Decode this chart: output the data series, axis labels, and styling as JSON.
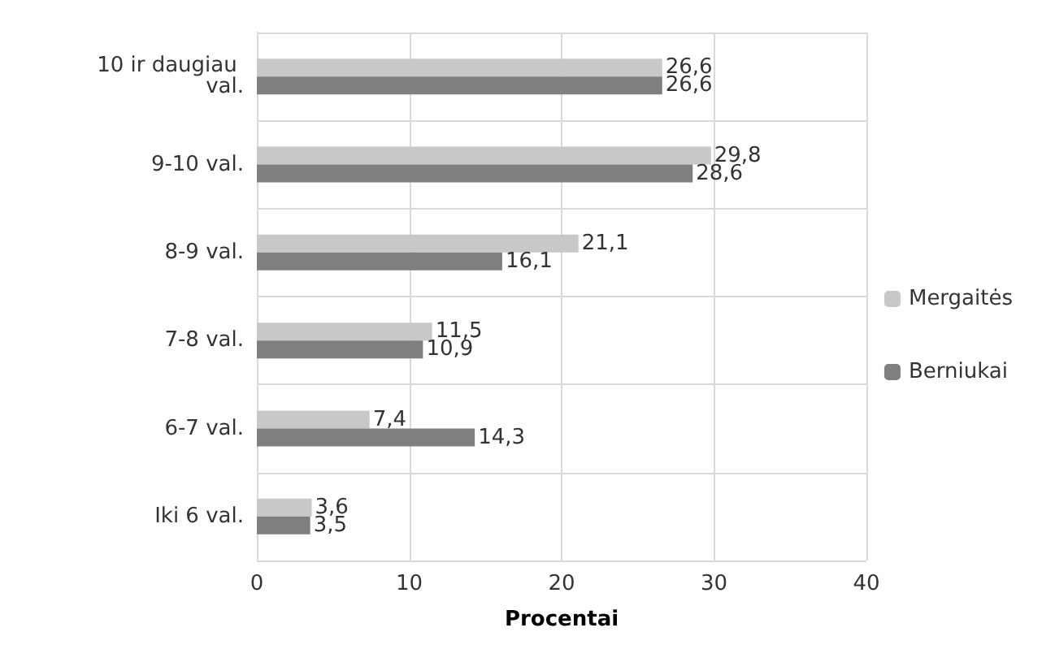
{
  "chart_data": {
    "type": "bar",
    "orientation": "horizontal",
    "xlabel": "Procentai",
    "categories": [
      "10 ir daugiau val.",
      "9-10 val.",
      "8-9 val.",
      "7-8 val.",
      "6-7 val.",
      "Iki 6 val."
    ],
    "series": [
      {
        "name": "Mergaitės",
        "color": "#c8c8c8",
        "values": [
          26.6,
          29.8,
          21.1,
          11.5,
          7.4,
          3.6
        ],
        "value_labels": [
          "26,6",
          "29,8",
          "21,1",
          "11,5",
          "7,4",
          "3,6"
        ]
      },
      {
        "name": "Berniukai",
        "color": "#7f7f7f",
        "values": [
          26.6,
          28.6,
          16.1,
          10.9,
          14.3,
          3.5
        ],
        "value_labels": [
          "26,6",
          "28,6",
          "16,1",
          "10,9",
          "14,3",
          "3,5"
        ]
      }
    ],
    "xlim": [
      0,
      40
    ],
    "xticks": [
      0,
      10,
      20,
      30,
      40
    ],
    "grid": true,
    "legend": "right"
  }
}
